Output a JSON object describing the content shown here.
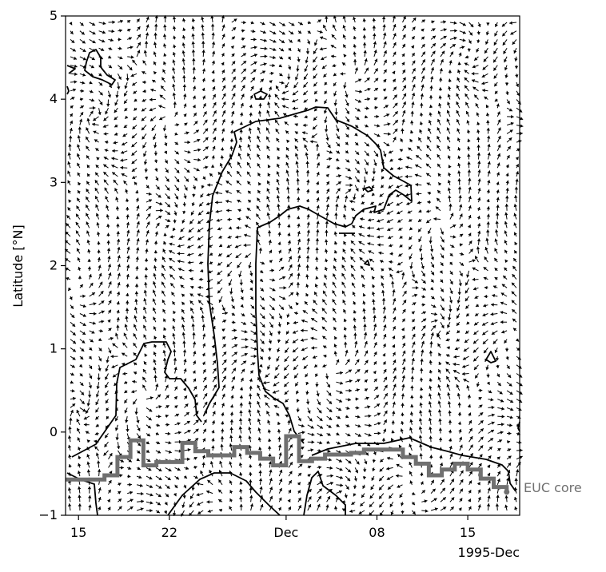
{
  "chart_data": {
    "type": "quiver+contour",
    "ylabel": "Latitude [°N]",
    "xlabel": "",
    "ylim": [
      -1,
      5
    ],
    "yticks": [
      -1,
      0,
      1,
      2,
      3,
      4,
      5
    ],
    "x_range_days": [
      "1995-11-14",
      "1995-12-19"
    ],
    "xticks": [
      {
        "date": "1995-11-15",
        "label": "15"
      },
      {
        "date": "1995-11-22",
        "label": "22"
      },
      {
        "date": "1995-12-01",
        "label": "Dec"
      },
      {
        "date": "1995-12-08",
        "label": "08"
      },
      {
        "date": "1995-12-15",
        "label": "15"
      }
    ],
    "x_offset_label": "1995-Dec",
    "grid": false,
    "series": [
      {
        "name": "EUC core",
        "color": "#707070",
        "x": [
          "1995-11-14",
          "1995-11-17",
          "1995-11-18",
          "1995-11-19",
          "1995-11-20",
          "1995-11-21",
          "1995-11-22",
          "1995-11-23",
          "1995-11-24",
          "1995-11-25",
          "1995-11-26",
          "1995-11-27",
          "1995-11-28",
          "1995-11-29",
          "1995-11-30",
          "1995-12-01",
          "1995-12-02",
          "1995-12-03",
          "1995-12-04",
          "1995-12-05",
          "1995-12-06",
          "1995-12-07",
          "1995-12-08",
          "1995-12-09",
          "1995-12-10",
          "1995-12-11",
          "1995-12-12",
          "1995-12-13",
          "1995-12-14",
          "1995-12-15",
          "1995-12-16",
          "1995-12-17",
          "1995-12-18"
        ],
        "values": [
          -0.57,
          -0.52,
          -0.3,
          -0.1,
          -0.4,
          -0.36,
          -0.36,
          -0.13,
          -0.23,
          -0.28,
          -0.28,
          -0.18,
          -0.25,
          -0.32,
          -0.4,
          -0.05,
          -0.35,
          -0.32,
          -0.27,
          -0.27,
          -0.25,
          -0.21,
          -0.21,
          -0.21,
          -0.3,
          -0.38,
          -0.52,
          -0.45,
          -0.38,
          -0.45,
          -0.56,
          -0.66,
          -0.72
        ]
      }
    ],
    "annotations": [
      "EUC core"
    ],
    "contour_color": "#000000",
    "vector_color": "#000000"
  }
}
